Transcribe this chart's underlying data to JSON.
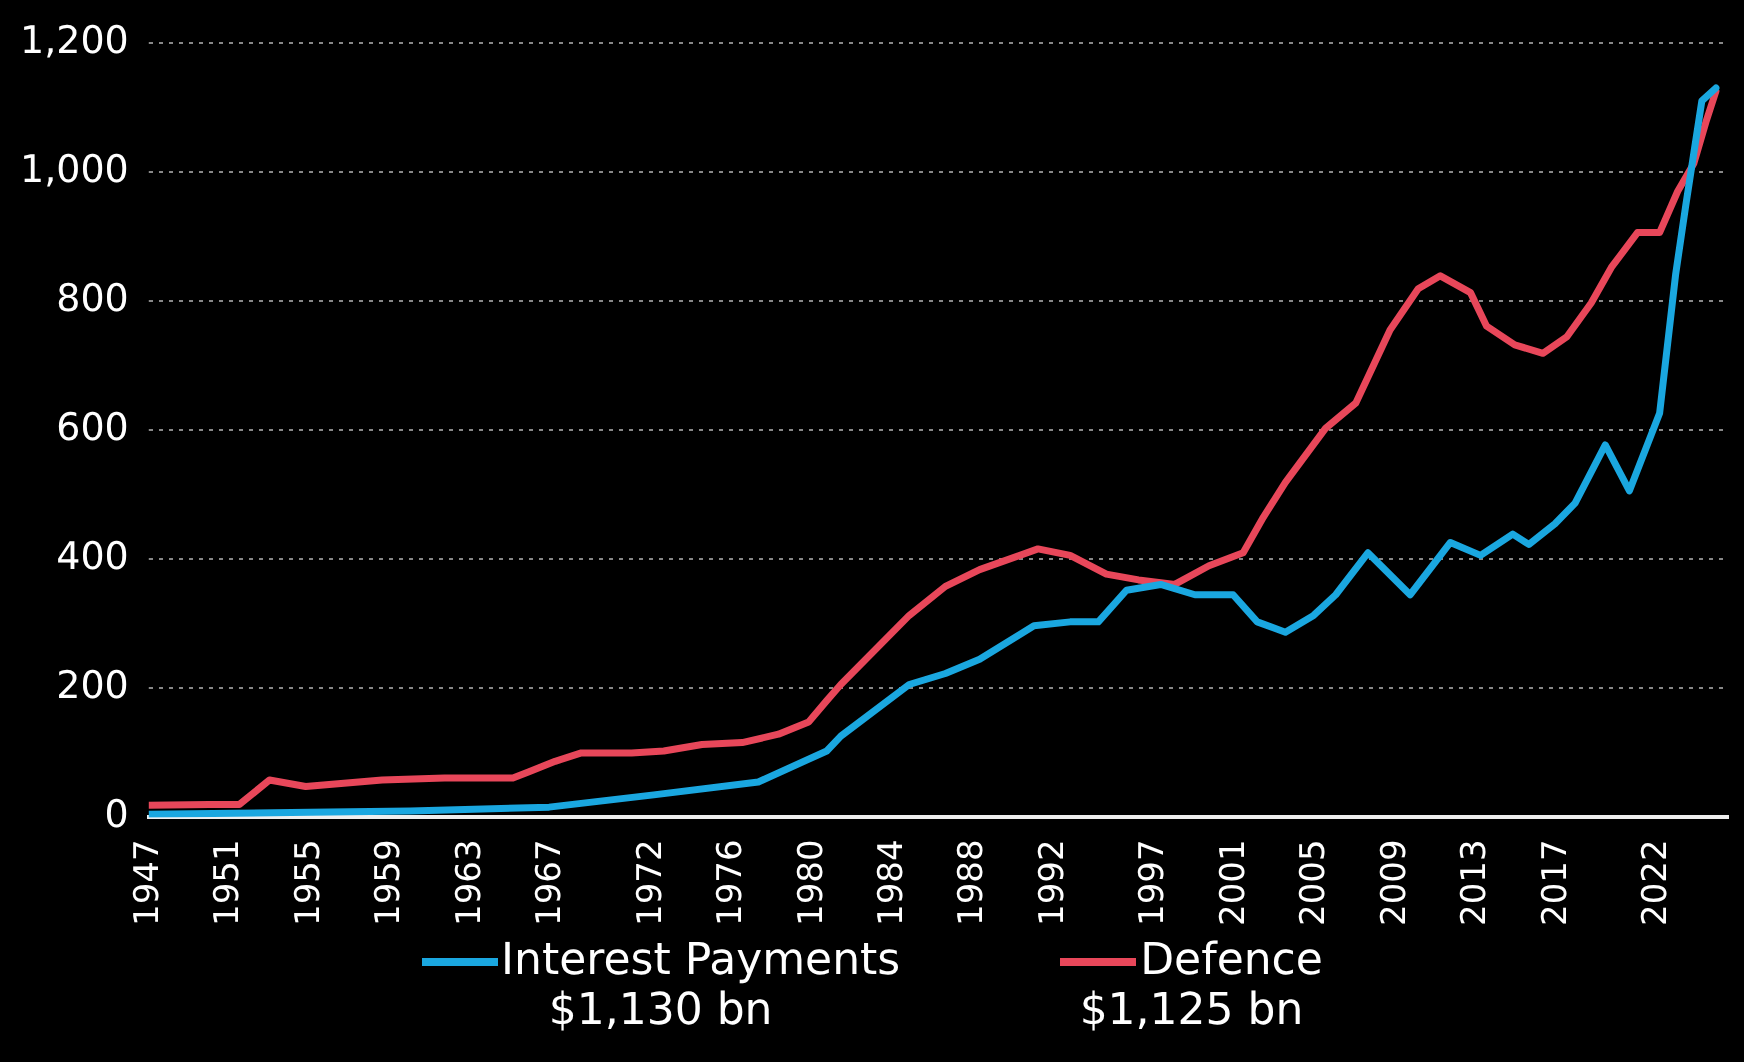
{
  "chart_data": {
    "type": "line",
    "xlim": [
      1947,
      2025.5
    ],
    "xticks": [
      1947,
      1951,
      1955,
      1959,
      1963,
      1967,
      1972,
      1976,
      1980,
      1984,
      1988,
      1992,
      1997,
      2001,
      2005,
      2009,
      2013,
      2017,
      2022
    ],
    "ylim": [
      0,
      1200
    ],
    "yticks": [
      0,
      {
        "value": 200,
        "label": "200"
      },
      {
        "value": 400,
        "label": "400"
      },
      {
        "value": 600,
        "label": "600"
      },
      {
        "value": 800,
        "label": "800"
      },
      {
        "value": 1000,
        "label": "1,000"
      },
      {
        "value": 1200,
        "label": "1,200"
      }
    ],
    "grid": "y",
    "legend": "bottom",
    "marker": "none",
    "line_style": "solid",
    "annotations": [
      "$1,130 bn",
      "$1,125 bn"
    ],
    "series": [
      {
        "name": "Interest Payments",
        "color": "#1aa7e0",
        "x": [
          1947,
          1955,
          1960,
          1966.9,
          1972.1,
          1977.3,
          1980.7,
          1981.4,
          1984.8,
          1986.6,
          1988.3,
          1991,
          1992.8,
          1994.2,
          1995.6,
          1997.3,
          1999,
          2000.9,
          2002.1,
          2003.5,
          2004.9,
          2006,
          2007.6,
          2009.7,
          2011.7,
          2013.2,
          2014.8,
          2015.6,
          2016.9,
          2017.9,
          2019.4,
          2020.6,
          2022.1,
          2022.9,
          2023.4,
          2024.2,
          2024.9
        ],
        "values": [
          5,
          8,
          10,
          16,
          35,
          55,
          103,
          126,
          206,
          223,
          245,
          297,
          303,
          303,
          352,
          361,
          345,
          345,
          303,
          287,
          313,
          345,
          410,
          345,
          426,
          406,
          439,
          423,
          455,
          487,
          577,
          506,
          626,
          842,
          948,
          1110,
          1130
        ]
      },
      {
        "name": "Defence",
        "color": "#e8475a",
        "x": [
          1947,
          1950,
          1951.5,
          1953,
          1954.8,
          1958.6,
          1961.7,
          1965.1,
          1965.9,
          1967.2,
          1968.5,
          1971,
          1972.6,
          1974.5,
          1976.5,
          1978.3,
          1979.8,
          1980.7,
          1981.4,
          1984.8,
          1986.6,
          1988.3,
          1991.2,
          1992.8,
          1994.6,
          1996.2,
          1998,
          1999.7,
          2001.4,
          2002.4,
          2003.5,
          2005.5,
          2007,
          2008.7,
          2010.1,
          2011.2,
          2012.7,
          2013.5,
          2014.9,
          2016.3,
          2017.5,
          2018.7,
          2019.7,
          2021,
          2022.1,
          2023,
          2023.8,
          2024.4,
          2024.9
        ],
        "values": [
          19,
          20,
          20,
          58,
          48,
          58,
          61,
          61,
          71,
          87,
          100,
          100,
          103,
          113,
          116,
          129,
          148,
          181,
          206,
          313,
          358,
          384,
          416,
          406,
          377,
          368,
          361,
          390,
          410,
          465,
          519,
          603,
          642,
          755,
          819,
          839,
          813,
          761,
          732,
          719,
          745,
          797,
          852,
          906,
          906,
          970,
          1013,
          1077,
          1125
        ]
      }
    ]
  }
}
